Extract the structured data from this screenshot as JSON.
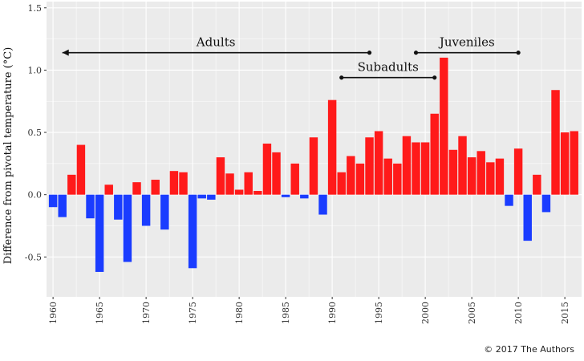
{
  "colors": {
    "positive": "#ff1a1a",
    "negative": "#1a3cff",
    "panel": "#ebebeb",
    "grid": "#ffffff"
  },
  "copyright": "© 2017 The Authors",
  "chart_data": {
    "type": "bar",
    "title": "",
    "xlabel": "",
    "ylabel": "Difference from pivotal temperature (°C)",
    "xlim": [
      1959.3,
      2016.8
    ],
    "ylim": [
      -0.82,
      1.55
    ],
    "yticks": [
      -0.5,
      0.0,
      0.5,
      1.0,
      1.5
    ],
    "ytick_labels": [
      "-0.5",
      "0.0",
      "0.5",
      "1.0",
      "1.5"
    ],
    "xticks": [
      1960,
      1965,
      1970,
      1975,
      1980,
      1985,
      1990,
      1995,
      2000,
      2005,
      2010,
      2015
    ],
    "xtick_labels": [
      "1960",
      "1965",
      "1970",
      "1975",
      "1980",
      "1985",
      "1990",
      "1995",
      "2000",
      "2005",
      "2010",
      "2015"
    ],
    "grid": true,
    "x": [
      1960,
      1961,
      1962,
      1963,
      1964,
      1965,
      1966,
      1967,
      1968,
      1969,
      1970,
      1971,
      1972,
      1973,
      1974,
      1975,
      1976,
      1977,
      1978,
      1979,
      1980,
      1981,
      1982,
      1983,
      1984,
      1985,
      1986,
      1987,
      1988,
      1989,
      1990,
      1991,
      1992,
      1993,
      1994,
      1995,
      1996,
      1997,
      1998,
      1999,
      2000,
      2001,
      2002,
      2003,
      2004,
      2005,
      2006,
      2007,
      2008,
      2009,
      2010,
      2011,
      2012,
      2013,
      2014,
      2015,
      2016
    ],
    "values": [
      -0.1,
      -0.18,
      0.16,
      0.4,
      -0.19,
      -0.62,
      0.08,
      -0.2,
      -0.54,
      0.1,
      -0.25,
      0.12,
      -0.28,
      0.19,
      0.18,
      -0.59,
      -0.03,
      -0.04,
      0.3,
      0.17,
      0.04,
      0.18,
      0.03,
      0.41,
      0.34,
      -0.02,
      0.25,
      -0.03,
      0.46,
      -0.16,
      0.76,
      0.18,
      0.31,
      0.25,
      0.46,
      0.51,
      0.29,
      0.25,
      0.47,
      0.42,
      0.42,
      0.65,
      1.1,
      0.36,
      0.47,
      0.3,
      0.35,
      0.26,
      0.29,
      -0.09,
      0.37,
      -0.37,
      0.16,
      -0.14,
      0.84,
      0.5,
      0.51
    ],
    "annotations": [
      {
        "label": "Adults",
        "x_start": 1961,
        "x_end": 1994,
        "y": 1.14,
        "style": "left-arrow"
      },
      {
        "label": "Subadults",
        "x_start": 1991,
        "x_end": 2001,
        "y": 0.94,
        "style": "dots"
      },
      {
        "label": "Juveniles",
        "x_start": 1999,
        "x_end": 2010,
        "y": 1.14,
        "style": "dots"
      }
    ]
  }
}
